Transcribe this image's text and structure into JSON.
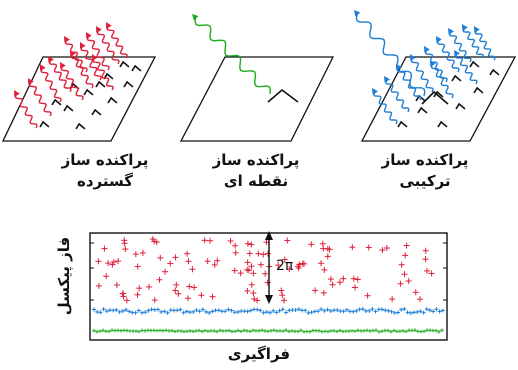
{
  "panels": {
    "distributed": {
      "line1": "پراکنده ساز",
      "line2": "گسترده"
    },
    "point": {
      "line1": "پراکنده ساز",
      "line2": "نقطه ای"
    },
    "combined": {
      "line1": "پراکنده ساز",
      "line2": "ترکیبی"
    }
  },
  "plot": {
    "xlabel": "فراگیری",
    "ylabel": "فاز پیکسل",
    "arrow_label": "2π"
  },
  "colors": {
    "distributed_scatter": "#e0203a",
    "point_scatter": "#1faa1f",
    "combined_scatter": "#1e7fd6",
    "axis": "#111111"
  },
  "icons": [
    "wave-arrow-icon",
    "corner-reflector-icon",
    "double-arrow-icon"
  ]
}
